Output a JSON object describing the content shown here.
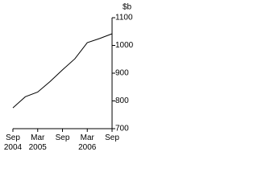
{
  "chart_data": {
    "type": "line",
    "y_axis_label": "$b",
    "categories": [
      "Sep 2004",
      null,
      "Mar 2005",
      null,
      "Sep",
      null,
      "Mar 2006",
      null,
      "Sep"
    ],
    "values": [
      775,
      815,
      832,
      870,
      912,
      952,
      1010,
      1025,
      1042
    ],
    "color": "#000000",
    "ylim": [
      700,
      1100
    ],
    "yticks": [
      700,
      800,
      900,
      1000,
      1100
    ],
    "y_axis_side": "right",
    "grid": false
  }
}
